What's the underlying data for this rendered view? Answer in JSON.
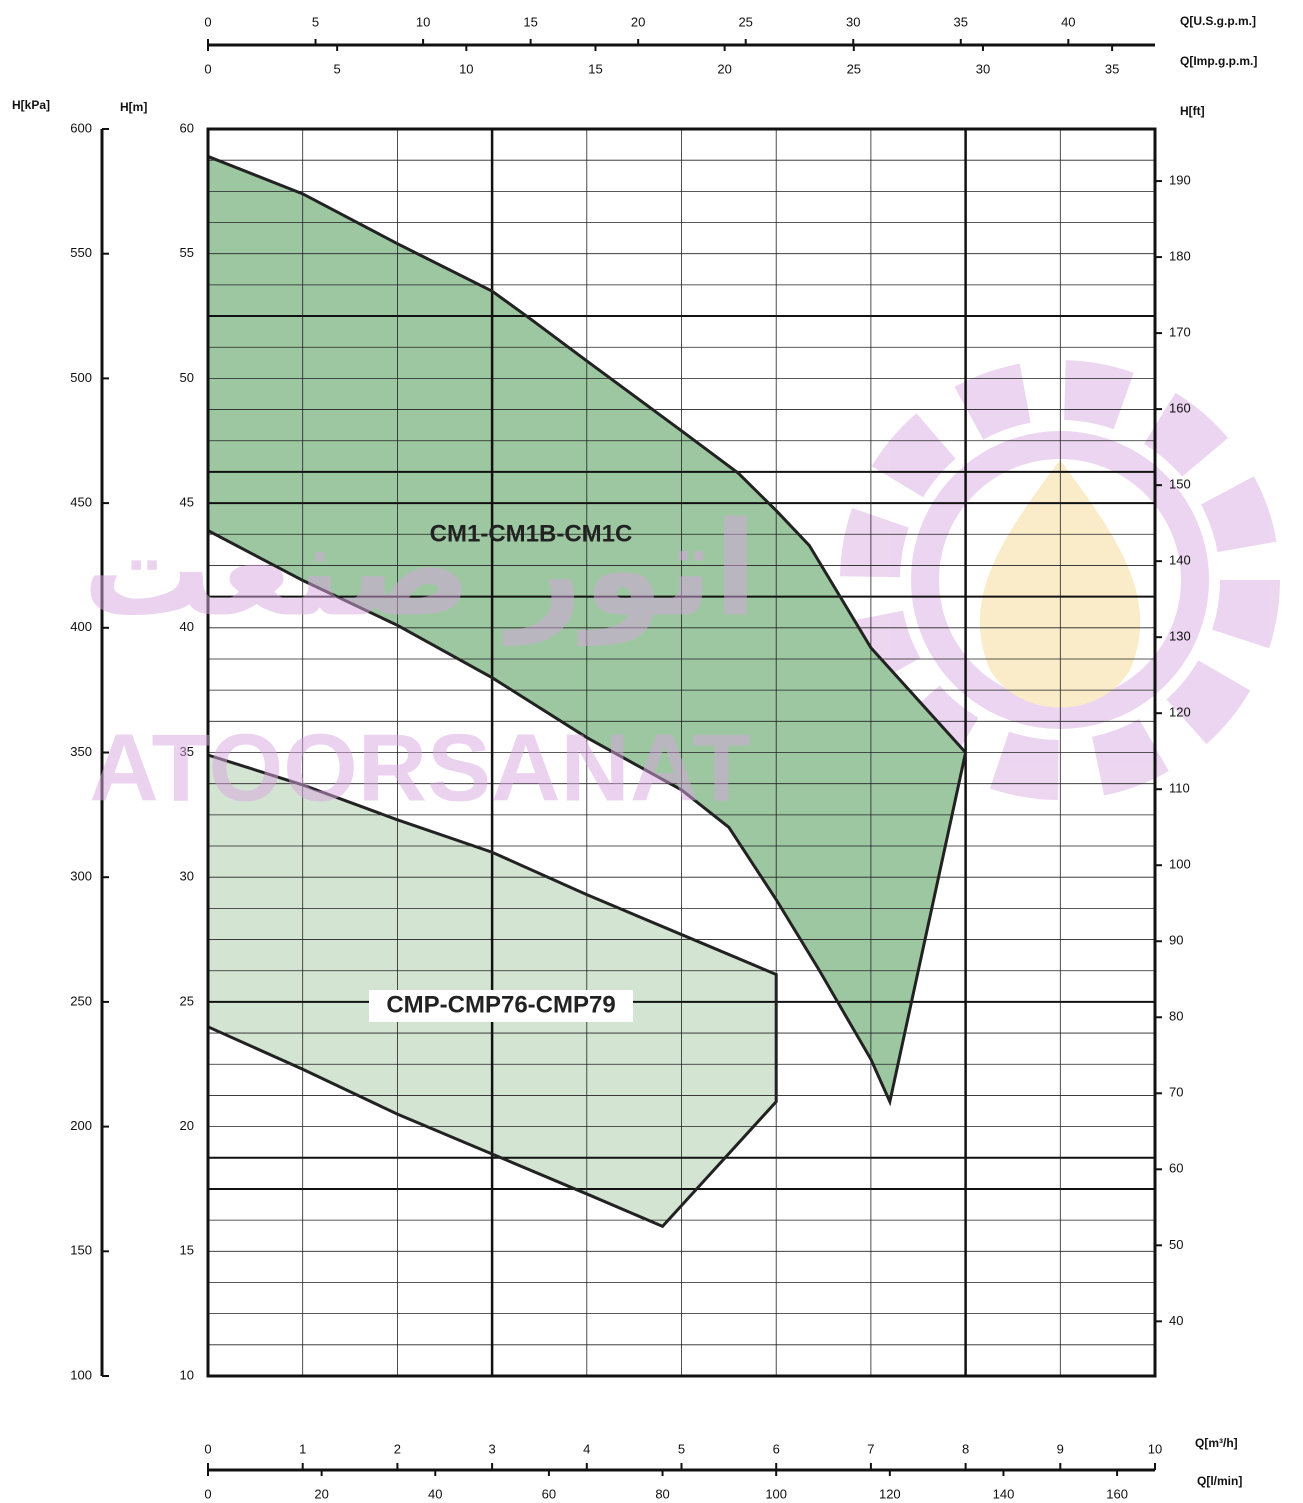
{
  "chart_data": {
    "type": "area",
    "xlim": [
      0,
      10
    ],
    "xticks": [
      0,
      1,
      2,
      3,
      4,
      5,
      6,
      7,
      8,
      9,
      10
    ],
    "xlabel": "Q[m³/h]",
    "ylim": [
      10,
      60
    ],
    "yticks": [
      10,
      15,
      20,
      25,
      30,
      35,
      40,
      45,
      50,
      55,
      60
    ],
    "ylabel": "H[m]",
    "ygrid": [
      10,
      11.25,
      12.5,
      13.75,
      15,
      16.25,
      17.5,
      18.75,
      20,
      21.25,
      22.5,
      23.75,
      25,
      26.25,
      27.5,
      28.75,
      30,
      31.25,
      32.5,
      33.75,
      35,
      36.25,
      37.5,
      38.75,
      40,
      41.25,
      42.5,
      43.75,
      45,
      46.25,
      47.5,
      48.75,
      50,
      51.25,
      52.5,
      53.75,
      55,
      56.25,
      57.5,
      58.75,
      60
    ],
    "ygrid_major": [
      17.5,
      18.75,
      25,
      41.25,
      45,
      46.25,
      52.5
    ],
    "xgrid_major": [
      3,
      8
    ],
    "extra_axes": [
      {
        "side": "left",
        "label": "H[kPa]",
        "lim": [
          100,
          600
        ],
        "ticks": [
          100,
          150,
          200,
          250,
          300,
          350,
          400,
          450,
          500,
          550,
          600
        ]
      },
      {
        "side": "right",
        "label": "H[ft]",
        "lim": [
          32.81,
          196.85
        ],
        "ticks": [
          40,
          50,
          60,
          70,
          80,
          90,
          100,
          110,
          120,
          130,
          140,
          150,
          160,
          170,
          180,
          190
        ]
      },
      {
        "side": "top",
        "label": "Q[U.S.g.p.m.]",
        "lim": [
          0,
          44.03
        ],
        "ticks": [
          0,
          5,
          10,
          15,
          20,
          25,
          30,
          35,
          40
        ]
      },
      {
        "side": "top2",
        "label": "Q[Imp.g.p.m.]",
        "lim": [
          0,
          36.66
        ],
        "ticks": [
          0,
          5,
          10,
          15,
          20,
          25,
          30,
          35
        ]
      },
      {
        "side": "bottom",
        "label": "Q[l/min]",
        "lim": [
          0,
          166.67
        ],
        "ticks": [
          0,
          20,
          40,
          60,
          80,
          100,
          120,
          140,
          160
        ]
      }
    ],
    "series": [
      {
        "name": "CM1-CM1B-CM1C",
        "color": "#9cc7a1",
        "x": [
          0,
          1,
          2,
          3,
          3.4,
          4,
          5,
          5.6,
          6,
          6.35,
          7,
          8,
          7.2,
          7,
          6.45,
          6,
          5.5,
          5,
          4,
          3,
          2,
          1,
          0
        ],
        "values": [
          58.9,
          57.4,
          55.4,
          53.5,
          52.4,
          50.7,
          47.9,
          46.2,
          44.7,
          43.3,
          39.2,
          35,
          21,
          22.7,
          26.3,
          29.1,
          32,
          33.5,
          35.6,
          38,
          40.1,
          41.9,
          43.9
        ]
      },
      {
        "name": "CMP-CMP76-CMP79",
        "color": "#d3e5d2",
        "x": [
          0,
          1,
          2,
          3,
          4,
          5,
          6,
          6,
          4.8,
          4,
          3,
          2,
          1,
          0
        ],
        "values": [
          34.9,
          33.7,
          32.3,
          31,
          29.3,
          27.7,
          26.1,
          21,
          16,
          17.3,
          18.9,
          20.5,
          22.3,
          24
        ]
      }
    ],
    "watermark": [
      "ATOORSANAT",
      "اتور صنعت"
    ]
  }
}
